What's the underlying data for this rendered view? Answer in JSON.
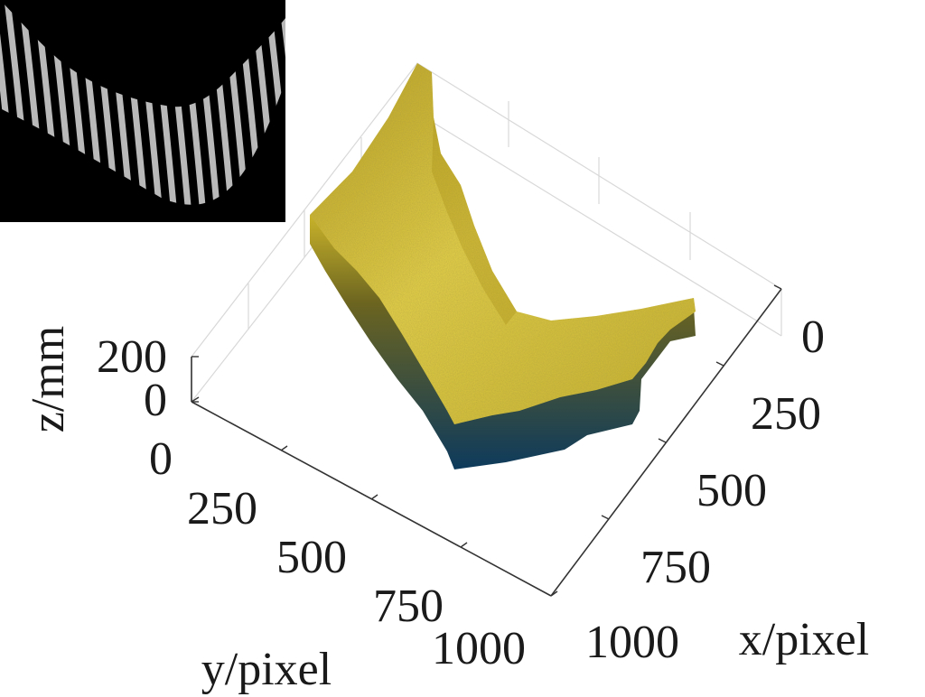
{
  "chart_data": {
    "type": "surface",
    "xlabel": "x/pixel",
    "ylabel": "y/pixel",
    "zlabel": "z/mm",
    "x_ticks": [
      "0",
      "250",
      "500",
      "750",
      "1000"
    ],
    "y_ticks": [
      "0",
      "250",
      "500",
      "750",
      "1000"
    ],
    "z_ticks": [
      "200",
      "0"
    ],
    "xlim": [
      0,
      1000
    ],
    "ylim": [
      0,
      1000
    ],
    "zlim": [
      0,
      200
    ],
    "grid": false,
    "surface_colors": {
      "top": "#c9b32a",
      "highlight": "#e8d54a",
      "mid": "#6b6420",
      "bottom": "#0d3a5c"
    },
    "inset": {
      "description_icon": "fringe-pattern-image",
      "background": "#000000",
      "fringe_color": "#d9d9d9"
    }
  }
}
